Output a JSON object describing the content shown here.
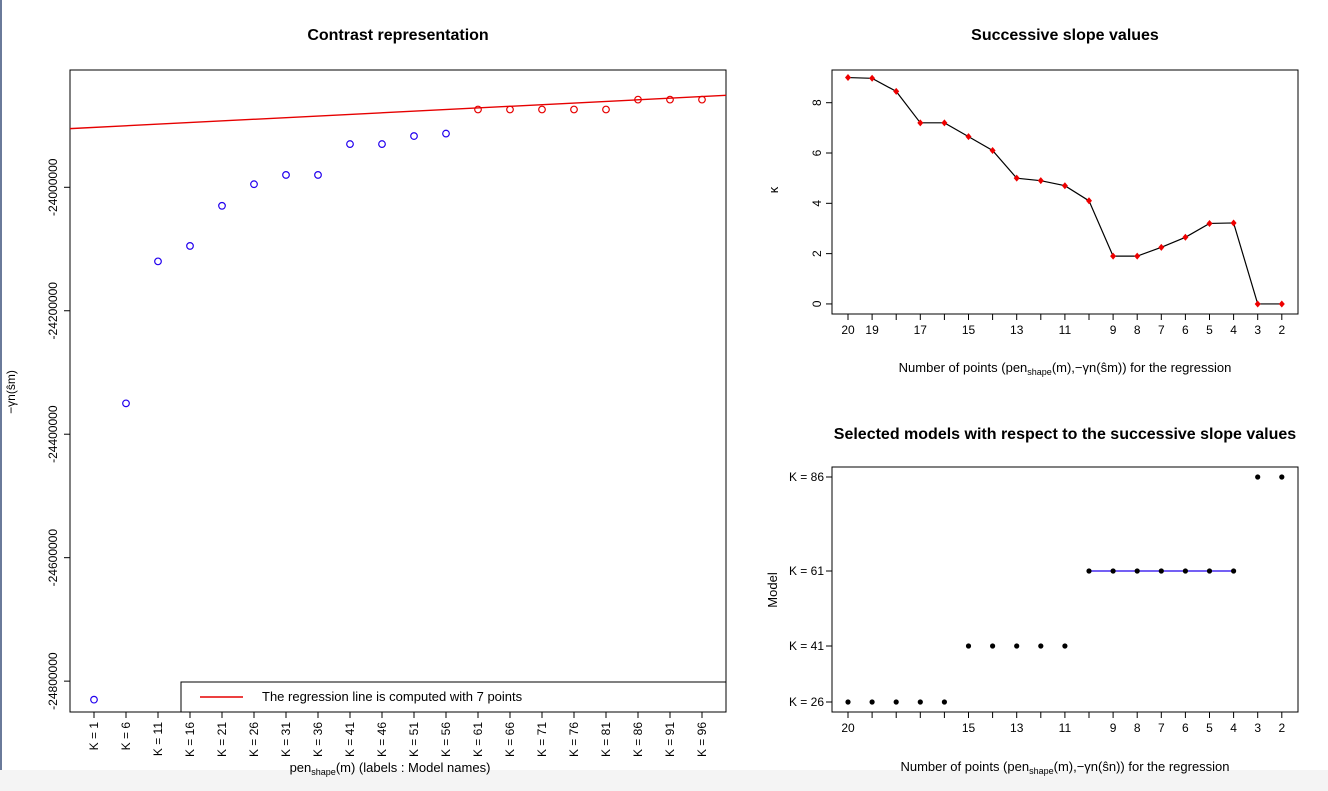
{
  "colors": {
    "regression": "#e60000",
    "blue_points": "#2200ee",
    "red_points": "#e60000",
    "diamond": "#ee0000",
    "selected_line": "#2200ee"
  },
  "chart_data": [
    {
      "type": "scatter",
      "title": "Contrast representation",
      "xlabel": "pen",
      "xlabel_sub": "shape",
      "xlabel_rest": "(m) (labels : Model names)",
      "ylabel": "−γn(ŝm)",
      "categories": [
        "K = 1",
        "K = 6",
        "K = 11",
        "K = 16",
        "K = 21",
        "K = 26",
        "K = 31",
        "K = 36",
        "K = 41",
        "K = 46",
        "K = 51",
        "K = 56",
        "K = 61",
        "K = 66",
        "K = 71",
        "K = 76",
        "K = 81",
        "K = 86",
        "K = 91",
        "K = 96"
      ],
      "y_ticks": [
        -24000000,
        -24200000,
        -24400000,
        -24600000,
        -24800000
      ],
      "y_tick_labels": [
        "-24000000",
        "-24200000",
        "-24400000",
        "-24600000",
        "-24800000"
      ],
      "ylim": [
        -24850000,
        -23810000
      ],
      "series": [
        {
          "values": [
            -24830000,
            -24350000,
            -24120000,
            -24095000,
            -24030000,
            -23995000,
            -23980000,
            -23980000,
            -23930000,
            -23930000,
            -23917000,
            -23913000
          ]
        },
        {
          "values": [
            -23874000,
            -23874000,
            -23874000,
            -23874000,
            -23874000,
            -23858000,
            -23858000,
            -23858000
          ]
        }
      ],
      "regression_line": {
        "y_at_first": -23903000,
        "y_at_last": -23853000
      },
      "legend": {
        "label": "The regression line is computed with 7 points",
        "position": "bottom-right"
      }
    },
    {
      "type": "line",
      "title": "Successive slope values",
      "xlabel_prefix": "Number of points (pen",
      "xlabel_sub": "shape",
      "xlabel_mid": "(m),−γn(ŝm)) for the regression",
      "ylabel": "κ",
      "x": [
        20,
        19,
        18,
        17,
        16,
        15,
        14,
        13,
        12,
        11,
        10,
        9,
        8,
        7,
        6,
        5,
        4,
        3,
        2
      ],
      "values": [
        9.0,
        8.97,
        8.45,
        7.2,
        7.2,
        6.65,
        6.1,
        5.0,
        4.9,
        4.7,
        4.1,
        1.9,
        1.9,
        2.25,
        2.65,
        3.2,
        3.22,
        0,
        0
      ],
      "x_tick_labels": [
        "20",
        "19",
        "17",
        "15",
        "13",
        "11",
        "9",
        "8",
        "7",
        "6",
        "5",
        "4",
        "3",
        "2"
      ],
      "x_tick_values": [
        20,
        19,
        17,
        15,
        13,
        11,
        9,
        8,
        7,
        6,
        5,
        4,
        3,
        2
      ],
      "y_ticks": [
        0,
        2,
        4,
        6,
        8
      ],
      "y_tick_labels": [
        "0",
        "2",
        "4",
        "6",
        "8"
      ],
      "ylim": [
        -0.4,
        9.3
      ]
    },
    {
      "type": "scatter",
      "title": "Selected models with respect to the successive slope values",
      "xlabel_prefix": "Number of points (pen",
      "xlabel_sub": "shape",
      "xlabel_mid": "(m),−γn(ŝn)) for the regression",
      "ylabel": "Model",
      "x": [
        20,
        19,
        18,
        17,
        16,
        15,
        14,
        13,
        12,
        11,
        10,
        9,
        8,
        7,
        6,
        5,
        4,
        3,
        2
      ],
      "values": [
        26,
        26,
        26,
        26,
        26,
        41,
        41,
        41,
        41,
        41,
        61,
        61,
        61,
        61,
        61,
        61,
        61,
        86,
        86
      ],
      "highlight_range": [
        10,
        4
      ],
      "x_tick_labels": [
        "20",
        "15",
        "13",
        "11",
        "9",
        "8",
        "7",
        "6",
        "5",
        "4",
        "3",
        "2"
      ],
      "x_tick_values": [
        20,
        15,
        13,
        11,
        9,
        8,
        7,
        6,
        5,
        4,
        3,
        2
      ],
      "y_tick_labels": [
        "K = 26",
        "K = 41",
        "K = 61",
        "K = 86"
      ],
      "y_tick_values": [
        26,
        41,
        61,
        86
      ]
    }
  ]
}
